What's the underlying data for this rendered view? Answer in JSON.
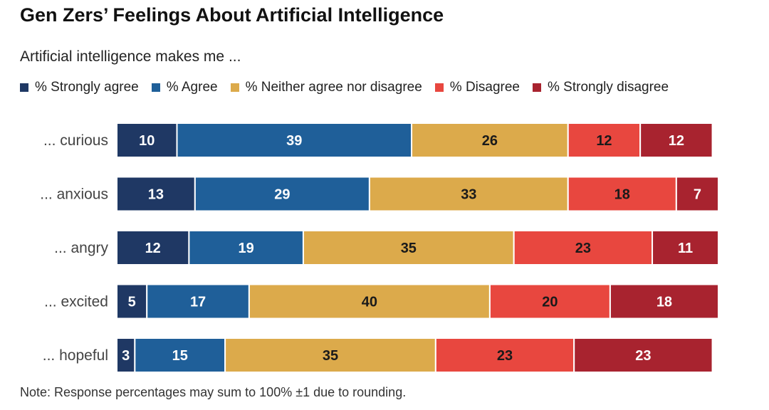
{
  "title": "Gen Zers’ Feelings About Artificial Intelligence",
  "subtitle": "Artificial intelligence makes me ...",
  "note": "Note: Response percentages may sum to 100% ±1 due to rounding.",
  "colors": {
    "strongly_agree": "#1f3864",
    "agree": "#1f5f99",
    "neither": "#dcaa4b",
    "disagree": "#e8473f",
    "strongly_disagree": "#a8232f"
  },
  "chart_data": {
    "type": "bar",
    "orientation": "horizontal",
    "stacked": true,
    "categories": [
      "... curious",
      "... anxious",
      "... angry",
      "... excited",
      "... hopeful"
    ],
    "series": [
      {
        "name": "% Strongly agree",
        "color": "#1f3864",
        "label_color": "#ffffff",
        "values": [
          10,
          13,
          12,
          5,
          3
        ]
      },
      {
        "name": "% Agree",
        "color": "#1f5f99",
        "label_color": "#ffffff",
        "values": [
          39,
          29,
          19,
          17,
          15
        ]
      },
      {
        "name": "% Neither agree nor disagree",
        "color": "#dcaa4b",
        "label_color": "#1a1a1a",
        "values": [
          26,
          33,
          35,
          40,
          35
        ]
      },
      {
        "name": "% Disagree",
        "color": "#e8473f",
        "label_color": "#1a1a1a",
        "values": [
          12,
          18,
          23,
          20,
          23
        ]
      },
      {
        "name": "% Strongly disagree",
        "color": "#a8232f",
        "label_color": "#ffffff",
        "values": [
          12,
          7,
          11,
          18,
          23
        ]
      }
    ],
    "xlim": [
      0,
      100
    ],
    "grid": false,
    "legend_position": "top-left"
  }
}
